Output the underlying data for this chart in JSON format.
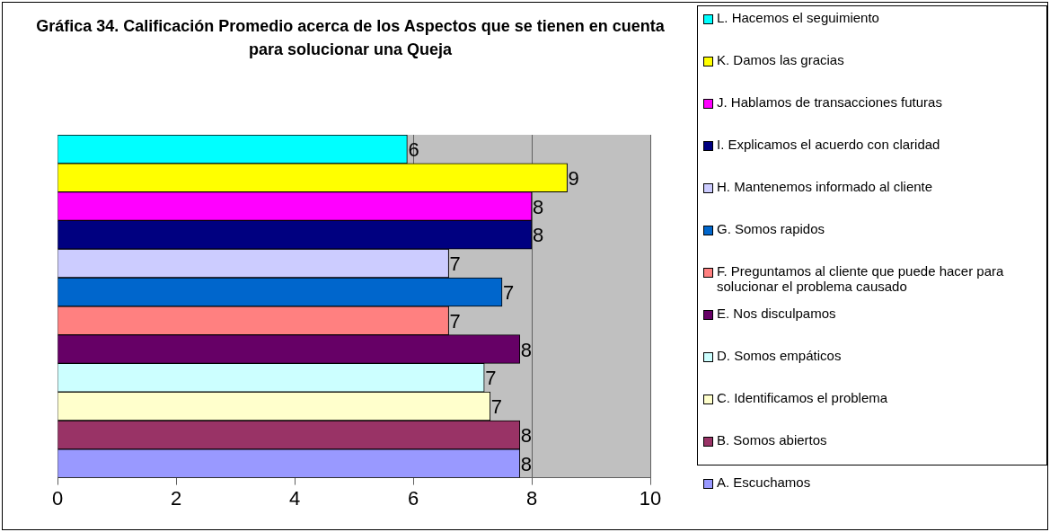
{
  "chart_data": {
    "type": "bar",
    "orientation": "horizontal",
    "title": "Gráfica 34. Calificación Promedio acerca de los Aspectos que se tienen en cuenta para solucionar una Queja",
    "categories": [
      null
    ],
    "series": [
      {
        "name": "L. Hacemos el seguimiento",
        "color": "#00ffff",
        "values": [
          5.9
        ],
        "value_labels": [
          "6"
        ]
      },
      {
        "name": "K. Damos las gracias",
        "color": "#ffff00",
        "values": [
          8.6
        ],
        "value_labels": [
          "9"
        ]
      },
      {
        "name": "J.  Hablamos de transacciones futuras",
        "color": "#ff00ff",
        "values": [
          8.0
        ],
        "value_labels": [
          "8"
        ]
      },
      {
        "name": "I.  Explicamos el acuerdo con claridad",
        "color": "#000080",
        "values": [
          8.0
        ],
        "value_labels": [
          "8"
        ]
      },
      {
        "name": "H. Mantenemos informado al cliente",
        "color": "#ccccff",
        "values": [
          6.6
        ],
        "value_labels": [
          "7"
        ]
      },
      {
        "name": "G. Somos rapidos",
        "color": "#0066cc",
        "values": [
          7.5
        ],
        "value_labels": [
          "7"
        ]
      },
      {
        "name": "F. Preguntamos al cliente que puede hacer para solucionar  el problema causado",
        "color": "#ff8080",
        "values": [
          6.6
        ],
        "value_labels": [
          "7"
        ]
      },
      {
        "name": "E. Nos disculpamos",
        "color": "#660066",
        "values": [
          7.8
        ],
        "value_labels": [
          "8"
        ]
      },
      {
        "name": "D. Somos empáticos",
        "color": "#ccffff",
        "values": [
          7.2
        ],
        "value_labels": [
          "7"
        ]
      },
      {
        "name": "C. Identificamos el problema",
        "color": "#ffffcc",
        "values": [
          7.3
        ],
        "value_labels": [
          "7"
        ]
      },
      {
        "name": "B. Somos abiertos",
        "color": "#993366",
        "values": [
          7.8
        ],
        "value_labels": [
          "8"
        ]
      },
      {
        "name": "A. Escuchamos",
        "color": "#9999ff",
        "values": [
          7.8
        ],
        "value_labels": [
          "8"
        ]
      }
    ],
    "xlim": [
      0,
      10
    ],
    "xticks": [
      0,
      2,
      4,
      6,
      8,
      10
    ],
    "grid": "x",
    "legend": "right"
  }
}
